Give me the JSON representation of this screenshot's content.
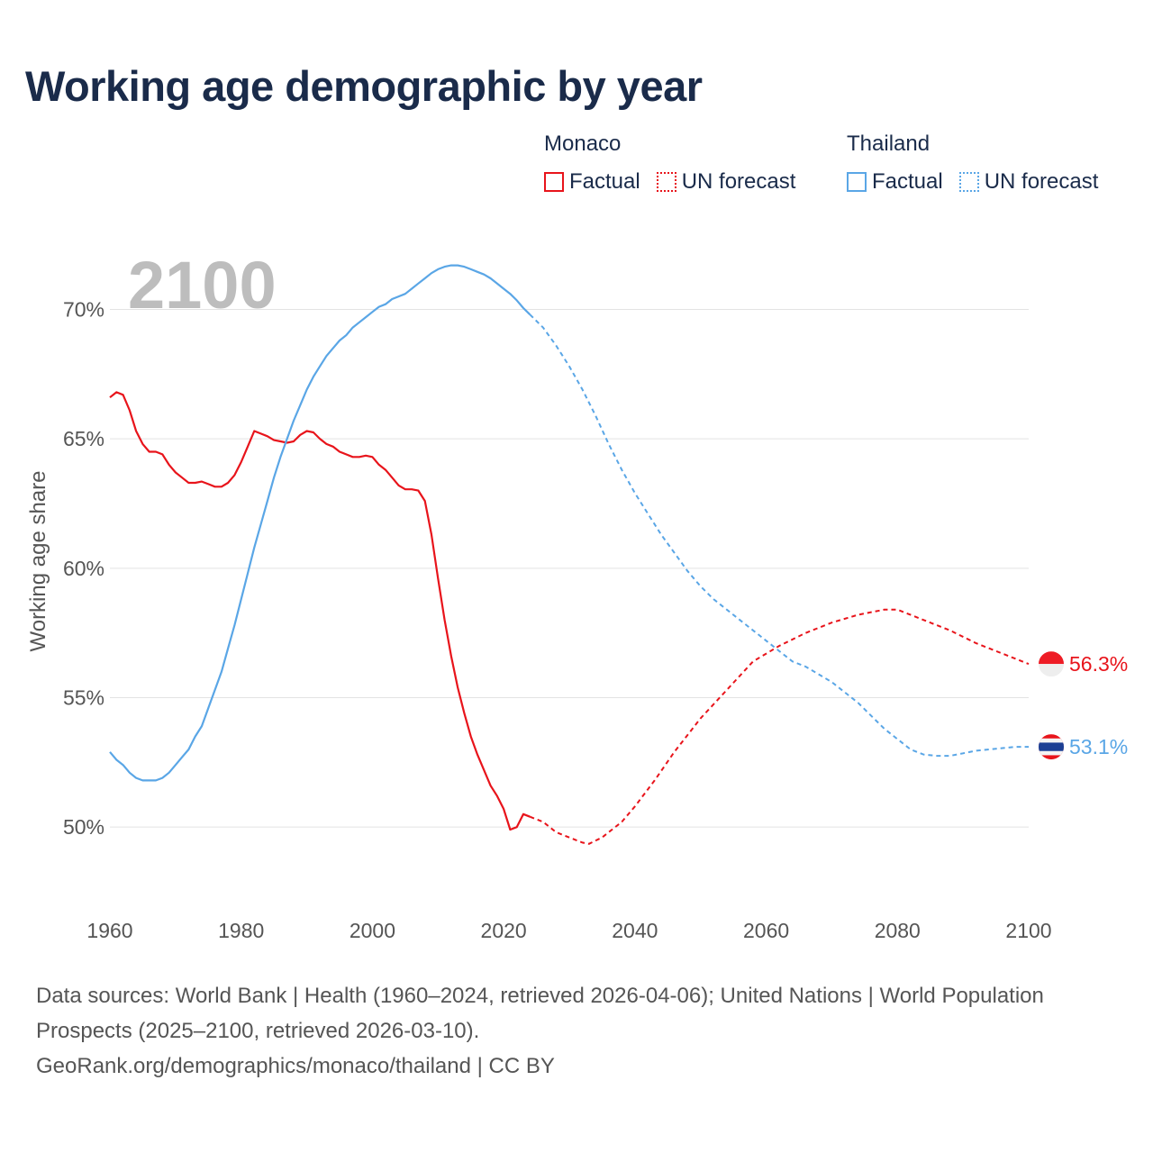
{
  "header": {
    "title": "Working age demographic by year"
  },
  "legend": {
    "groups": [
      {
        "country": "Monaco",
        "factual_label": "Factual",
        "forecast_label": "UN forecast",
        "color": "#e8141b"
      },
      {
        "country": "Thailand",
        "factual_label": "Factual",
        "forecast_label": "UN forecast",
        "color": "#5aa6e6"
      }
    ]
  },
  "footer": {
    "sources": "Data sources: World Bank | Health (1960–2024, retrieved 2026-04-06); United Nations | World Population Prospects (2025–2100, retrieved 2026-03-10).",
    "credit": "GeoRank.org/demographics/monaco/thailand | CC BY"
  },
  "chart_data": {
    "type": "line",
    "title": "Working age demographic by year",
    "ylabel": "Working age share",
    "xlabel": "",
    "year_label": "2100",
    "xlim": [
      1960,
      2100
    ],
    "ylim": [
      47.5,
      72
    ],
    "x_ticks": [
      1960,
      1980,
      2000,
      2020,
      2040,
      2060,
      2080,
      2100
    ],
    "y_ticks": [
      50,
      55,
      60,
      65,
      70
    ],
    "y_tick_labels": [
      "50%",
      "55%",
      "60%",
      "65%",
      "70%"
    ],
    "grid": true,
    "factual_end_year": 2024,
    "series": [
      {
        "name": "Monaco",
        "color": "#e8141b",
        "end_label": "56.3%",
        "flag": "monaco",
        "points": [
          [
            1960,
            66.6
          ],
          [
            1961,
            66.8
          ],
          [
            1962,
            66.7
          ],
          [
            1963,
            66.1
          ],
          [
            1964,
            65.3
          ],
          [
            1965,
            64.8
          ],
          [
            1966,
            64.5
          ],
          [
            1967,
            64.5
          ],
          [
            1968,
            64.4
          ],
          [
            1969,
            64.0
          ],
          [
            1970,
            63.7
          ],
          [
            1971,
            63.5
          ],
          [
            1972,
            63.3
          ],
          [
            1973,
            63.3
          ],
          [
            1974,
            63.35
          ],
          [
            1975,
            63.25
          ],
          [
            1976,
            63.15
          ],
          [
            1977,
            63.15
          ],
          [
            1978,
            63.3
          ],
          [
            1979,
            63.6
          ],
          [
            1980,
            64.1
          ],
          [
            1981,
            64.7
          ],
          [
            1982,
            65.3
          ],
          [
            1983,
            65.2
          ],
          [
            1984,
            65.1
          ],
          [
            1985,
            64.95
          ],
          [
            1986,
            64.9
          ],
          [
            1987,
            64.85
          ],
          [
            1988,
            64.9
          ],
          [
            1989,
            65.15
          ],
          [
            1990,
            65.3
          ],
          [
            1991,
            65.25
          ],
          [
            1992,
            65.0
          ],
          [
            1993,
            64.8
          ],
          [
            1994,
            64.7
          ],
          [
            1995,
            64.5
          ],
          [
            1996,
            64.4
          ],
          [
            1997,
            64.3
          ],
          [
            1998,
            64.3
          ],
          [
            1999,
            64.35
          ],
          [
            2000,
            64.3
          ],
          [
            2001,
            64.0
          ],
          [
            2002,
            63.8
          ],
          [
            2003,
            63.5
          ],
          [
            2004,
            63.2
          ],
          [
            2005,
            63.05
          ],
          [
            2006,
            63.05
          ],
          [
            2007,
            63.0
          ],
          [
            2008,
            62.6
          ],
          [
            2009,
            61.3
          ],
          [
            2010,
            59.6
          ],
          [
            2011,
            58.0
          ],
          [
            2012,
            56.6
          ],
          [
            2013,
            55.4
          ],
          [
            2014,
            54.4
          ],
          [
            2015,
            53.5
          ],
          [
            2016,
            52.8
          ],
          [
            2017,
            52.2
          ],
          [
            2018,
            51.6
          ],
          [
            2019,
            51.2
          ],
          [
            2020,
            50.7
          ],
          [
            2021,
            49.9
          ],
          [
            2022,
            50.0
          ],
          [
            2023,
            50.5
          ],
          [
            2024,
            50.4
          ],
          [
            2026,
            50.2
          ],
          [
            2028,
            49.8
          ],
          [
            2030,
            49.6
          ],
          [
            2032,
            49.4
          ],
          [
            2033,
            49.35
          ],
          [
            2035,
            49.6
          ],
          [
            2038,
            50.2
          ],
          [
            2040,
            50.8
          ],
          [
            2043,
            51.8
          ],
          [
            2046,
            52.9
          ],
          [
            2050,
            54.2
          ],
          [
            2054,
            55.3
          ],
          [
            2058,
            56.4
          ],
          [
            2062,
            57.0
          ],
          [
            2066,
            57.5
          ],
          [
            2070,
            57.9
          ],
          [
            2074,
            58.2
          ],
          [
            2078,
            58.4
          ],
          [
            2080,
            58.4
          ],
          [
            2084,
            58.0
          ],
          [
            2088,
            57.6
          ],
          [
            2092,
            57.1
          ],
          [
            2096,
            56.7
          ],
          [
            2100,
            56.3
          ]
        ]
      },
      {
        "name": "Thailand",
        "color": "#5aa6e6",
        "end_label": "53.1%",
        "flag": "thailand",
        "points": [
          [
            1960,
            52.9
          ],
          [
            1961,
            52.6
          ],
          [
            1962,
            52.4
          ],
          [
            1963,
            52.1
          ],
          [
            1964,
            51.9
          ],
          [
            1965,
            51.8
          ],
          [
            1966,
            51.8
          ],
          [
            1967,
            51.8
          ],
          [
            1968,
            51.9
          ],
          [
            1969,
            52.1
          ],
          [
            1970,
            52.4
          ],
          [
            1971,
            52.7
          ],
          [
            1972,
            53.0
          ],
          [
            1973,
            53.5
          ],
          [
            1974,
            53.9
          ],
          [
            1975,
            54.6
          ],
          [
            1976,
            55.3
          ],
          [
            1977,
            56.0
          ],
          [
            1978,
            56.9
          ],
          [
            1979,
            57.8
          ],
          [
            1980,
            58.8
          ],
          [
            1981,
            59.8
          ],
          [
            1982,
            60.8
          ],
          [
            1983,
            61.7
          ],
          [
            1984,
            62.6
          ],
          [
            1985,
            63.5
          ],
          [
            1986,
            64.3
          ],
          [
            1987,
            65.0
          ],
          [
            1988,
            65.7
          ],
          [
            1989,
            66.3
          ],
          [
            1990,
            66.9
          ],
          [
            1991,
            67.4
          ],
          [
            1992,
            67.8
          ],
          [
            1993,
            68.2
          ],
          [
            1994,
            68.5
          ],
          [
            1995,
            68.8
          ],
          [
            1996,
            69.0
          ],
          [
            1997,
            69.3
          ],
          [
            1998,
            69.5
          ],
          [
            1999,
            69.7
          ],
          [
            2000,
            69.9
          ],
          [
            2001,
            70.1
          ],
          [
            2002,
            70.2
          ],
          [
            2003,
            70.4
          ],
          [
            2004,
            70.5
          ],
          [
            2005,
            70.6
          ],
          [
            2006,
            70.8
          ],
          [
            2007,
            71.0
          ],
          [
            2008,
            71.2
          ],
          [
            2009,
            71.4
          ],
          [
            2010,
            71.55
          ],
          [
            2011,
            71.65
          ],
          [
            2012,
            71.7
          ],
          [
            2013,
            71.7
          ],
          [
            2014,
            71.65
          ],
          [
            2015,
            71.55
          ],
          [
            2016,
            71.45
          ],
          [
            2017,
            71.35
          ],
          [
            2018,
            71.2
          ],
          [
            2019,
            71.0
          ],
          [
            2020,
            70.8
          ],
          [
            2021,
            70.6
          ],
          [
            2022,
            70.35
          ],
          [
            2023,
            70.05
          ],
          [
            2024,
            69.8
          ],
          [
            2026,
            69.3
          ],
          [
            2028,
            68.6
          ],
          [
            2030,
            67.8
          ],
          [
            2032,
            66.9
          ],
          [
            2034,
            65.9
          ],
          [
            2036,
            64.8
          ],
          [
            2038,
            63.8
          ],
          [
            2040,
            62.9
          ],
          [
            2042,
            62.1
          ],
          [
            2044,
            61.3
          ],
          [
            2046,
            60.6
          ],
          [
            2048,
            59.9
          ],
          [
            2050,
            59.3
          ],
          [
            2052,
            58.8
          ],
          [
            2054,
            58.4
          ],
          [
            2056,
            58.0
          ],
          [
            2058,
            57.6
          ],
          [
            2060,
            57.2
          ],
          [
            2062,
            56.8
          ],
          [
            2064,
            56.4
          ],
          [
            2066,
            56.2
          ],
          [
            2068,
            55.9
          ],
          [
            2070,
            55.6
          ],
          [
            2072,
            55.2
          ],
          [
            2074,
            54.8
          ],
          [
            2076,
            54.3
          ],
          [
            2078,
            53.8
          ],
          [
            2080,
            53.4
          ],
          [
            2082,
            53.0
          ],
          [
            2084,
            52.8
          ],
          [
            2086,
            52.75
          ],
          [
            2088,
            52.75
          ],
          [
            2090,
            52.85
          ],
          [
            2092,
            52.95
          ],
          [
            2094,
            53.0
          ],
          [
            2096,
            53.05
          ],
          [
            2098,
            53.1
          ],
          [
            2100,
            53.1
          ]
        ]
      }
    ]
  }
}
